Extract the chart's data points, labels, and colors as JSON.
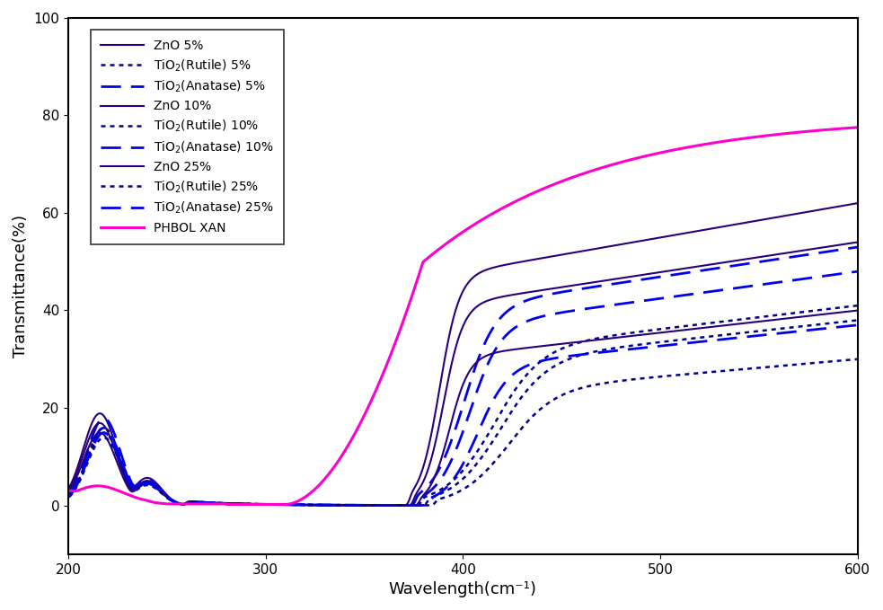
{
  "xlabel": "Wavelength(cm⁻¹)",
  "ylabel": "Transmittance(%)",
  "xlim": [
    200,
    600
  ],
  "ylim": [
    -10,
    100
  ],
  "yticks": [
    0,
    20,
    40,
    60,
    80,
    100
  ],
  "xticks": [
    200,
    300,
    400,
    500,
    600
  ],
  "background": "#ffffff",
  "series": [
    {
      "label": "ZnO 5%",
      "color": "#2a007a",
      "linestyle": "solid",
      "linewidth": 1.5,
      "group": "ZnO",
      "pct": 5
    },
    {
      "label": "TiO$_2$(Rutile) 5%",
      "color": "#00008b",
      "linestyle": "dotted",
      "linewidth": 1.8,
      "group": "Rutile",
      "pct": 5
    },
    {
      "label": "TiO$_2$(Anatase) 5%",
      "color": "#0000ee",
      "linestyle": "dashed",
      "linewidth": 2.0,
      "group": "Anatase",
      "pct": 5
    },
    {
      "label": "ZnO 10%",
      "color": "#2a007a",
      "linestyle": "solid",
      "linewidth": 1.5,
      "group": "ZnO",
      "pct": 10
    },
    {
      "label": "TiO$_2$(Rutile) 10%",
      "color": "#00008b",
      "linestyle": "dotted",
      "linewidth": 1.8,
      "group": "Rutile",
      "pct": 10
    },
    {
      "label": "TiO$_2$(Anatase) 10%",
      "color": "#0000ee",
      "linestyle": "dashed",
      "linewidth": 2.0,
      "group": "Anatase",
      "pct": 10
    },
    {
      "label": "ZnO 25%",
      "color": "#2a007a",
      "linestyle": "solid",
      "linewidth": 1.5,
      "group": "ZnO",
      "pct": 25
    },
    {
      "label": "TiO$_2$(Rutile) 25%",
      "color": "#00008b",
      "linestyle": "dotted",
      "linewidth": 1.8,
      "group": "Rutile",
      "pct": 25
    },
    {
      "label": "TiO$_2$(Anatase) 25%",
      "color": "#0000ee",
      "linestyle": "dashed",
      "linewidth": 2.0,
      "group": "Anatase",
      "pct": 25
    },
    {
      "label": "PHBOL XAN",
      "color": "#ff00cc",
      "linestyle": "solid",
      "linewidth": 2.2,
      "group": "XAN",
      "pct": 0
    }
  ]
}
